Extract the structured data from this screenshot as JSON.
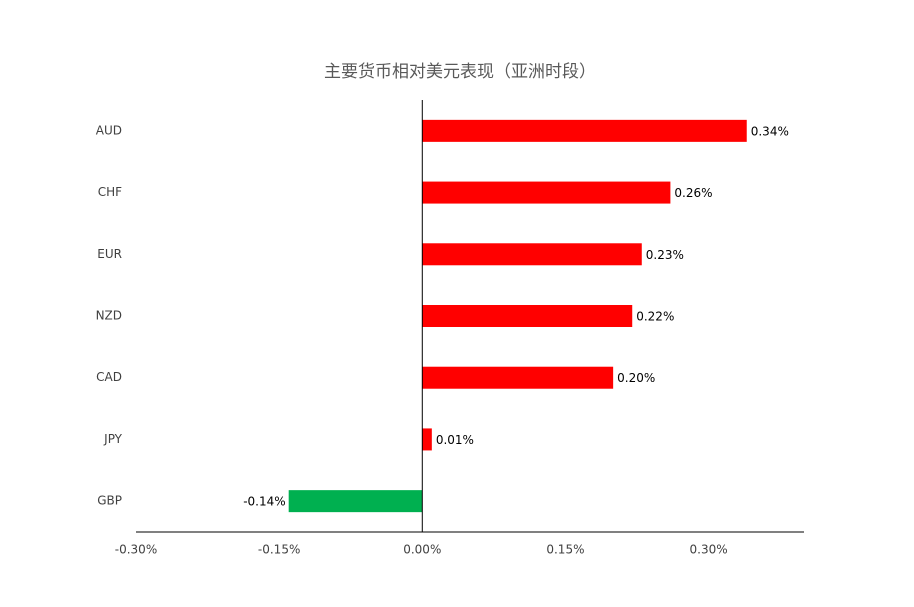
{
  "chart_data": {
    "type": "hbar",
    "title": "主要货币相对美元表现（亚洲时段）",
    "categories": [
      "AUD",
      "CHF",
      "EUR",
      "NZD",
      "CAD",
      "JPY",
      "GBP"
    ],
    "values": [
      0.34,
      0.26,
      0.23,
      0.22,
      0.2,
      0.01,
      -0.14
    ],
    "value_labels": [
      "0.34%",
      "0.26%",
      "0.23%",
      "0.22%",
      "0.20%",
      "0.01%",
      "-0.14%"
    ],
    "colors": [
      "#ff0000",
      "#ff0000",
      "#ff0000",
      "#ff0000",
      "#ff0000",
      "#ff0000",
      "#00b050"
    ],
    "xlim": [
      -0.3,
      0.4
    ],
    "xticks": [
      {
        "value": -0.3,
        "label": "-0.30%"
      },
      {
        "value": -0.15,
        "label": "-0.15%"
      },
      {
        "value": 0,
        "label": "0.00%"
      },
      {
        "value": 0.15,
        "label": "0.15%"
      },
      {
        "value": 0.3,
        "label": "0.30%"
      }
    ],
    "grid": false
  }
}
